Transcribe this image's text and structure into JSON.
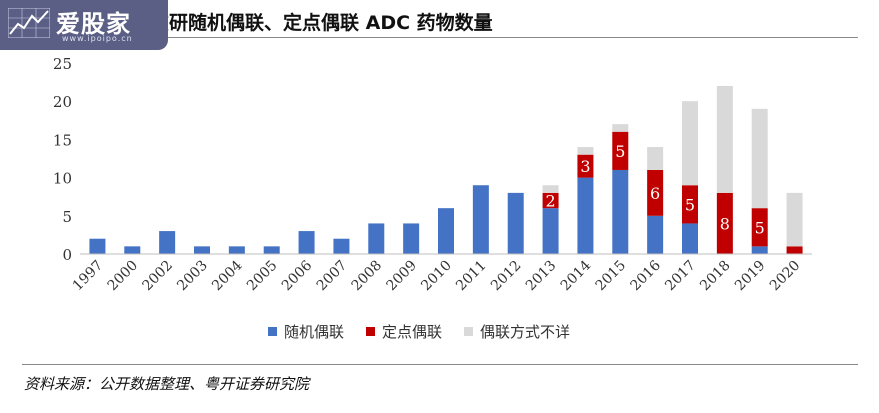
{
  "watermark": {
    "text": "爱股家",
    "url": "www.ipoipo.cn"
  },
  "title": "在研随机偶联、定点偶联 ADC 药物数量",
  "source": "资料来源：公开数据整理、粤开证券研究院",
  "colors": {
    "random": "#4472c4",
    "site": "#c00000",
    "unknown": "#d9d9d9"
  },
  "chart_data": {
    "type": "bar",
    "stacked": true,
    "categories": [
      "1997",
      "2000",
      "2002",
      "2003",
      "2004",
      "2005",
      "2006",
      "2007",
      "2008",
      "2009",
      "2010",
      "2011",
      "2012",
      "2013",
      "2014",
      "2015",
      "2016",
      "2017",
      "2018",
      "2019",
      "2020"
    ],
    "series": [
      {
        "name": "随机偶联",
        "values": [
          2,
          1,
          3,
          1,
          1,
          1,
          3,
          2,
          4,
          4,
          6,
          9,
          8,
          6,
          10,
          11,
          5,
          4,
          0,
          1,
          0
        ]
      },
      {
        "name": "定点偶联",
        "values": [
          0,
          0,
          0,
          0,
          0,
          0,
          0,
          0,
          0,
          0,
          0,
          0,
          0,
          2,
          3,
          5,
          6,
          5,
          8,
          5,
          1
        ]
      },
      {
        "name": "偶联方式不详",
        "values": [
          0,
          0,
          0,
          0,
          0,
          0,
          0,
          0,
          0,
          0,
          0,
          0,
          0,
          1,
          1,
          1,
          3,
          11,
          14,
          13,
          7
        ]
      }
    ],
    "data_labels": {
      "series": "定点偶联",
      "categories": [
        "2013",
        "2014",
        "2015",
        "2016",
        "2017",
        "2018",
        "2019"
      ]
    },
    "ylim": [
      0,
      25
    ],
    "yticks": [
      0,
      5,
      10,
      15,
      20,
      25
    ],
    "legend_position": "bottom"
  }
}
